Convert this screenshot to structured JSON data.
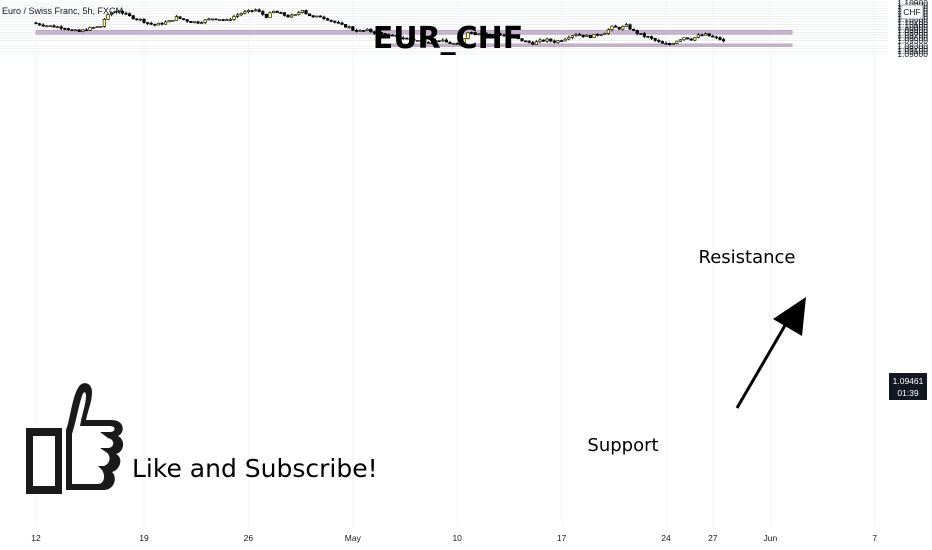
{
  "chart_data": {
    "type": "candlestick",
    "symbol_label": "Euro / Swiss Franc, 5h, FXCM",
    "title": "EUR_CHF",
    "currency_badge": "CHF",
    "y_ticks": [
      "1.10900",
      "1.10800",
      "1.10700",
      "1.10600",
      "1.10500",
      "1.10400",
      "1.10300",
      "1.10200",
      "1.10100",
      "1.10000",
      "1.09900",
      "1.09800",
      "1.09700",
      "1.09600",
      "1.09500",
      "1.09300",
      "1.09200",
      "1.09100",
      "1.09000"
    ],
    "ylim": [
      1.0897,
      1.1093
    ],
    "x_ticks": [
      {
        "label": "12",
        "bar": 0
      },
      {
        "label": "19",
        "bar": 30
      },
      {
        "label": "26",
        "bar": 59
      },
      {
        "label": "May",
        "bar": 88
      },
      {
        "label": "10",
        "bar": 117
      },
      {
        "label": "17",
        "bar": 146
      },
      {
        "label": "24",
        "bar": 175
      },
      {
        "label": "27",
        "bar": 188
      },
      {
        "label": "Jun",
        "bar": 204
      },
      {
        "label": "7",
        "bar": 233
      }
    ],
    "last_price": "1.09461",
    "countdown": "01:39",
    "zones": [
      {
        "name": "Resistance",
        "bar_start": 0,
        "bar_end": 210,
        "low": 1.0974,
        "high": 1.0987,
        "color": "#c9b6cf"
      },
      {
        "name": "Support",
        "bar_start": 95,
        "bar_end": 210,
        "low": 1.0928,
        "high": 1.0937,
        "color": "#c9b6cf"
      }
    ],
    "annotations": [
      "Resistance",
      "Support"
    ],
    "call_to_action": "Like and Subscribe!",
    "up_color": "#ffff80",
    "down_color": "#000000",
    "close_path": [
      [
        0,
        1.1013
      ],
      [
        2,
        1.1008
      ],
      [
        5,
        1.1002
      ],
      [
        8,
        1.0998
      ],
      [
        10,
        1.0988
      ],
      [
        12,
        1.0983
      ],
      [
        14,
        1.0992
      ],
      [
        16,
        1.0998
      ],
      [
        18,
        1.1003
      ],
      [
        19,
        1.103
      ],
      [
        21,
        1.1055
      ],
      [
        23,
        1.1062
      ],
      [
        25,
        1.1046
      ],
      [
        27,
        1.1035
      ],
      [
        29,
        1.1028
      ],
      [
        31,
        1.1015
      ],
      [
        33,
        1.1008
      ],
      [
        35,
        1.1014
      ],
      [
        37,
        1.1022
      ],
      [
        39,
        1.1036
      ],
      [
        41,
        1.1028
      ],
      [
        43,
        1.102
      ],
      [
        45,
        1.1018
      ],
      [
        47,
        1.1025
      ],
      [
        49,
        1.1032
      ],
      [
        51,
        1.103
      ],
      [
        53,
        1.1024
      ],
      [
        55,
        1.104
      ],
      [
        57,
        1.1052
      ],
      [
        59,
        1.1058
      ],
      [
        61,
        1.1064
      ],
      [
        63,
        1.1048
      ],
      [
        64,
        1.104
      ],
      [
        66,
        1.1058
      ],
      [
        68,
        1.105
      ],
      [
        70,
        1.104
      ],
      [
        72,
        1.1044
      ],
      [
        74,
        1.1066
      ],
      [
        75,
        1.1052
      ],
      [
        77,
        1.1036
      ],
      [
        79,
        1.104
      ],
      [
        81,
        1.103
      ],
      [
        83,
        1.1018
      ],
      [
        85,
        1.1006
      ],
      [
        87,
        1.1
      ],
      [
        88,
        1.099
      ],
      [
        90,
        1.0985
      ],
      [
        92,
        1.0988
      ],
      [
        94,
        1.098
      ],
      [
        96,
        1.0975
      ],
      [
        98,
        1.0968
      ],
      [
        100,
        1.0964
      ],
      [
        102,
        1.096
      ],
      [
        104,
        1.0954
      ],
      [
        106,
        1.095
      ],
      [
        108,
        1.0948
      ],
      [
        110,
        1.0944
      ],
      [
        112,
        1.0952
      ],
      [
        114,
        1.0943
      ],
      [
        116,
        1.0938
      ],
      [
        117,
        1.0932
      ],
      [
        118,
        1.0935
      ],
      [
        119,
        1.096
      ],
      [
        120,
        1.0984
      ],
      [
        122,
        1.0975
      ],
      [
        124,
        1.0982
      ],
      [
        126,
        1.0966
      ],
      [
        128,
        1.0975
      ],
      [
        130,
        1.097
      ],
      [
        132,
        1.0962
      ],
      [
        134,
        1.0955
      ],
      [
        136,
        1.0946
      ],
      [
        138,
        1.094
      ],
      [
        140,
        1.0948
      ],
      [
        142,
        1.0952
      ],
      [
        144,
        1.0946
      ],
      [
        146,
        1.0952
      ],
      [
        148,
        1.0966
      ],
      [
        150,
        1.0975
      ],
      [
        152,
        1.0968
      ],
      [
        154,
        1.0965
      ],
      [
        156,
        1.0972
      ],
      [
        158,
        1.098
      ],
      [
        160,
        1.1
      ],
      [
        162,
        1.0996
      ],
      [
        164,
        1.1005
      ],
      [
        166,
        1.0985
      ],
      [
        168,
        1.0972
      ],
      [
        170,
        1.0962
      ],
      [
        172,
        1.095
      ],
      [
        174,
        1.0938
      ],
      [
        176,
        1.0935
      ],
      [
        178,
        1.095
      ],
      [
        180,
        1.0962
      ],
      [
        182,
        1.0955
      ],
      [
        184,
        1.0968
      ],
      [
        186,
        1.0972
      ],
      [
        188,
        1.0962
      ],
      [
        190,
        1.0955
      ],
      [
        191,
        1.0946
      ]
    ]
  }
}
